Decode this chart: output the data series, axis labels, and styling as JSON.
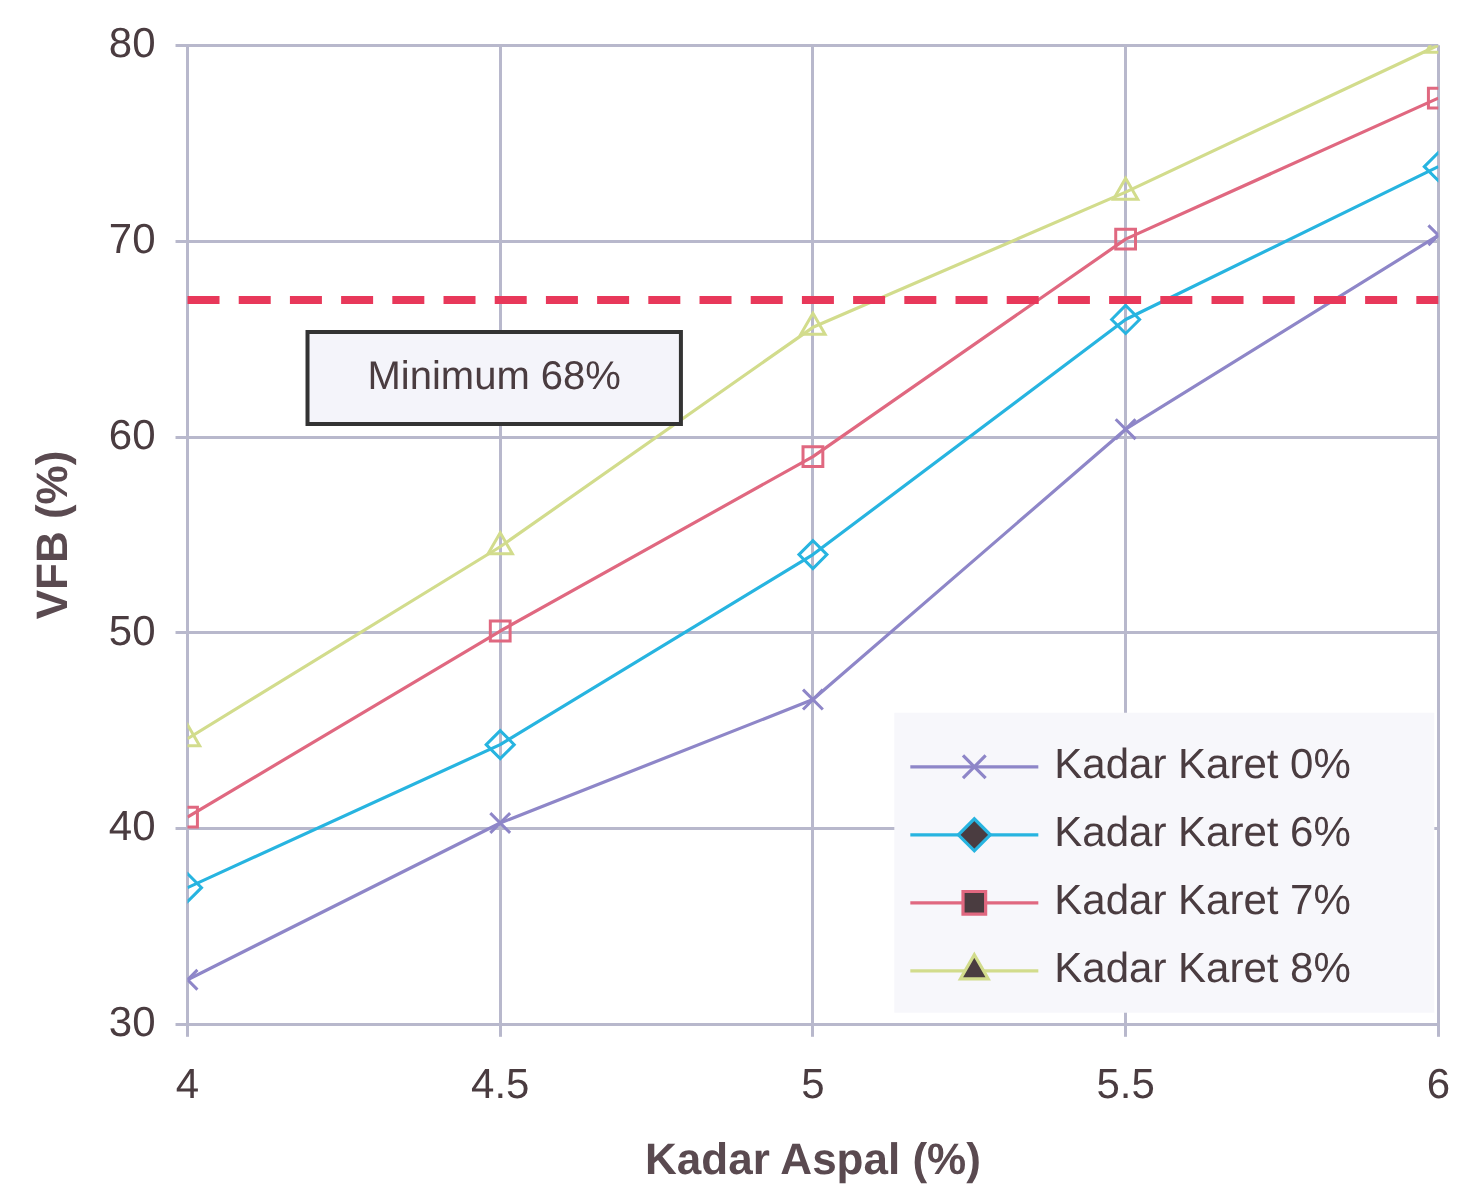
{
  "chart_data": {
    "type": "line",
    "xlabel": "Kadar Aspal (%)",
    "ylabel": "VFB (%)",
    "x": [
      4,
      4.5,
      5,
      5.5,
      6
    ],
    "xlim": [
      4,
      6
    ],
    "xticks": [
      4,
      4.5,
      5,
      5.5,
      6
    ],
    "ylim": [
      30,
      80
    ],
    "yticks": [
      30,
      40,
      50,
      60,
      70,
      80
    ],
    "grid": true,
    "legend": "bottom right",
    "line_style": "solid",
    "series": [
      {
        "name": "Kadar Karet 0%",
        "color": "#8e86c8",
        "marker": "cross",
        "values": [
          32.3,
          40.3,
          46.6,
          60.4,
          70.3
        ]
      },
      {
        "name": "Kadar Karet 6%",
        "color": "#27b4e0",
        "marker": "diamond",
        "values": [
          37,
          44.3,
          54,
          66,
          73.8
        ]
      },
      {
        "name": "Kadar Karet 7%",
        "color": "#e06880",
        "marker": "square",
        "values": [
          40.6,
          50.1,
          59,
          70.1,
          77.3
        ]
      },
      {
        "name": "Kadar Karet 8%",
        "color": "#d2dc8c",
        "marker": "triangle",
        "values": [
          44.6,
          54.4,
          65.6,
          72.5,
          80
        ]
      }
    ],
    "ref_lines": [
      {
        "axis": "y",
        "value": 67,
        "label": "Minimum 68%",
        "color": "#e8385a",
        "line_style": "dashed"
      }
    ]
  }
}
